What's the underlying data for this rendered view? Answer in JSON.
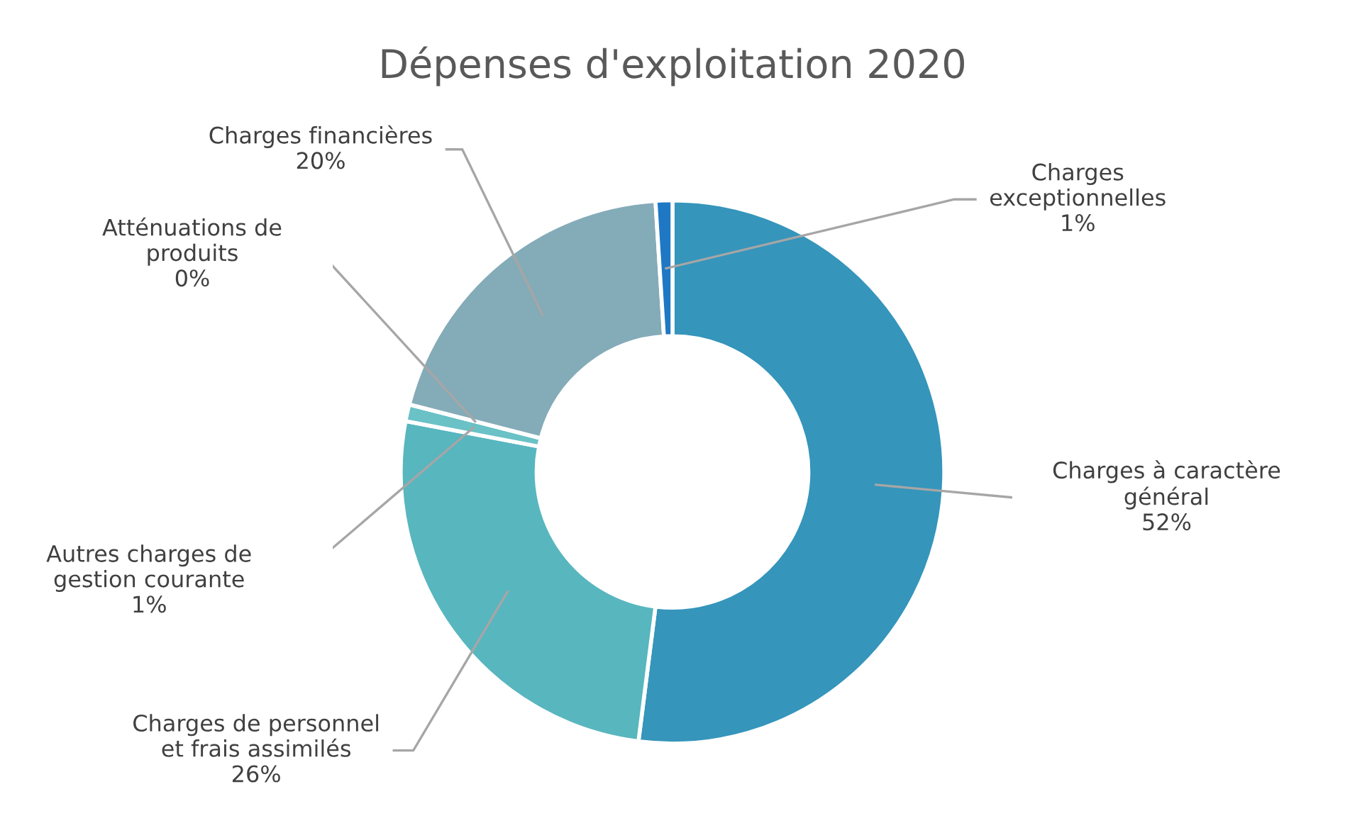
{
  "chart_data": {
    "type": "donut",
    "title": "Dépenses d'exploitation 2020",
    "categories": [
      "Charges à caractère général",
      "Charges de personnel et frais assimilés",
      "Autres charges de gestion courante",
      "Atténuations de produits",
      "Charges financières",
      "Charges exceptionnelles"
    ],
    "values": [
      52,
      26,
      1,
      0,
      20,
      1
    ],
    "value_labels": [
      "52%",
      "26%",
      "1%",
      "0%",
      "20%",
      "1%"
    ],
    "colors": [
      "#3595bb",
      "#58b6bf",
      "#6ac1c6",
      "#9fc3cc",
      "#84abb8",
      "#1f78c4"
    ],
    "legend": false
  }
}
